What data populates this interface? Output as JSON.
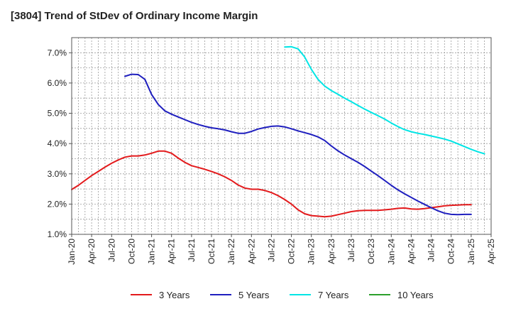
{
  "chart_data": {
    "type": "line",
    "title": "[3804]  Trend of StDev of Ordinary Income Margin",
    "xlabel": "",
    "ylabel": "",
    "ylim": [
      1.0,
      7.5
    ],
    "yticks": [
      "1.0%",
      "2.0%",
      "3.0%",
      "4.0%",
      "5.0%",
      "6.0%",
      "7.0%"
    ],
    "xticks": [
      "Jan-20",
      "Apr-20",
      "Jul-20",
      "Oct-20",
      "Jan-21",
      "Apr-21",
      "Jul-21",
      "Oct-21",
      "Jan-22",
      "Apr-22",
      "Jul-22",
      "Oct-22",
      "Jan-23",
      "Apr-23",
      "Jul-23",
      "Oct-23",
      "Jan-24",
      "Apr-24",
      "Jul-24",
      "Oct-24",
      "Jan-25",
      "Apr-25"
    ],
    "grid": true,
    "legend_position": "bottom",
    "series": [
      {
        "name": "3 Years",
        "color": "#e31a1c",
        "points": [
          [
            "2020-01",
            2.48
          ],
          [
            "2020-02",
            2.62
          ],
          [
            "2020-03",
            2.78
          ],
          [
            "2020-04",
            2.94
          ],
          [
            "2020-05",
            3.08
          ],
          [
            "2020-06",
            3.22
          ],
          [
            "2020-07",
            3.35
          ],
          [
            "2020-08",
            3.46
          ],
          [
            "2020-09",
            3.55
          ],
          [
            "2020-10",
            3.59
          ],
          [
            "2020-11",
            3.59
          ],
          [
            "2020-12",
            3.62
          ],
          [
            "2021-01",
            3.68
          ],
          [
            "2021-02",
            3.75
          ],
          [
            "2021-03",
            3.75
          ],
          [
            "2021-04",
            3.68
          ],
          [
            "2021-05",
            3.52
          ],
          [
            "2021-06",
            3.38
          ],
          [
            "2021-07",
            3.27
          ],
          [
            "2021-08",
            3.21
          ],
          [
            "2021-09",
            3.15
          ],
          [
            "2021-10",
            3.08
          ],
          [
            "2021-11",
            3.0
          ],
          [
            "2021-12",
            2.9
          ],
          [
            "2022-01",
            2.78
          ],
          [
            "2022-02",
            2.63
          ],
          [
            "2022-03",
            2.53
          ],
          [
            "2022-04",
            2.49
          ],
          [
            "2022-05",
            2.49
          ],
          [
            "2022-06",
            2.45
          ],
          [
            "2022-07",
            2.38
          ],
          [
            "2022-08",
            2.28
          ],
          [
            "2022-09",
            2.15
          ],
          [
            "2022-10",
            2.0
          ],
          [
            "2022-11",
            1.81
          ],
          [
            "2022-12",
            1.68
          ],
          [
            "2023-01",
            1.62
          ],
          [
            "2023-02",
            1.6
          ],
          [
            "2023-03",
            1.58
          ],
          [
            "2023-04",
            1.6
          ],
          [
            "2023-05",
            1.65
          ],
          [
            "2023-06",
            1.7
          ],
          [
            "2023-07",
            1.75
          ],
          [
            "2023-08",
            1.78
          ],
          [
            "2023-09",
            1.79
          ],
          [
            "2023-10",
            1.79
          ],
          [
            "2023-11",
            1.79
          ],
          [
            "2023-12",
            1.81
          ],
          [
            "2024-01",
            1.83
          ],
          [
            "2024-02",
            1.86
          ],
          [
            "2024-03",
            1.87
          ],
          [
            "2024-04",
            1.84
          ],
          [
            "2024-05",
            1.83
          ],
          [
            "2024-06",
            1.85
          ],
          [
            "2024-07",
            1.88
          ],
          [
            "2024-08",
            1.91
          ],
          [
            "2024-09",
            1.94
          ],
          [
            "2024-10",
            1.96
          ],
          [
            "2024-11",
            1.97
          ],
          [
            "2024-12",
            1.98
          ],
          [
            "2025-01",
            1.98
          ]
        ]
      },
      {
        "name": "5 Years",
        "color": "#1f1fbf",
        "points": [
          [
            "2020-09",
            6.22
          ],
          [
            "2020-10",
            6.29
          ],
          [
            "2020-11",
            6.28
          ],
          [
            "2020-12",
            6.12
          ],
          [
            "2021-01",
            5.62
          ],
          [
            "2021-02",
            5.29
          ],
          [
            "2021-03",
            5.08
          ],
          [
            "2021-04",
            4.97
          ],
          [
            "2021-05",
            4.88
          ],
          [
            "2021-06",
            4.79
          ],
          [
            "2021-07",
            4.7
          ],
          [
            "2021-08",
            4.63
          ],
          [
            "2021-09",
            4.57
          ],
          [
            "2021-10",
            4.52
          ],
          [
            "2021-11",
            4.49
          ],
          [
            "2021-12",
            4.45
          ],
          [
            "2022-01",
            4.39
          ],
          [
            "2022-02",
            4.34
          ],
          [
            "2022-03",
            4.34
          ],
          [
            "2022-04",
            4.4
          ],
          [
            "2022-05",
            4.48
          ],
          [
            "2022-06",
            4.53
          ],
          [
            "2022-07",
            4.57
          ],
          [
            "2022-08",
            4.58
          ],
          [
            "2022-09",
            4.55
          ],
          [
            "2022-10",
            4.49
          ],
          [
            "2022-11",
            4.42
          ],
          [
            "2022-12",
            4.36
          ],
          [
            "2023-01",
            4.3
          ],
          [
            "2023-02",
            4.22
          ],
          [
            "2023-03",
            4.1
          ],
          [
            "2023-04",
            3.92
          ],
          [
            "2023-05",
            3.76
          ],
          [
            "2023-06",
            3.62
          ],
          [
            "2023-07",
            3.5
          ],
          [
            "2023-08",
            3.38
          ],
          [
            "2023-09",
            3.24
          ],
          [
            "2023-10",
            3.09
          ],
          [
            "2023-11",
            2.94
          ],
          [
            "2023-12",
            2.78
          ],
          [
            "2024-01",
            2.62
          ],
          [
            "2024-02",
            2.47
          ],
          [
            "2024-03",
            2.34
          ],
          [
            "2024-04",
            2.22
          ],
          [
            "2024-05",
            2.1
          ],
          [
            "2024-06",
            1.99
          ],
          [
            "2024-07",
            1.88
          ],
          [
            "2024-08",
            1.78
          ],
          [
            "2024-09",
            1.7
          ],
          [
            "2024-10",
            1.66
          ],
          [
            "2024-11",
            1.65
          ],
          [
            "2024-12",
            1.66
          ],
          [
            "2025-01",
            1.66
          ]
        ]
      },
      {
        "name": "7 Years",
        "color": "#00e5e5",
        "points": [
          [
            "2022-09",
            7.19
          ],
          [
            "2022-10",
            7.2
          ],
          [
            "2022-11",
            7.13
          ],
          [
            "2022-12",
            6.86
          ],
          [
            "2023-01",
            6.45
          ],
          [
            "2023-02",
            6.12
          ],
          [
            "2023-03",
            5.9
          ],
          [
            "2023-04",
            5.75
          ],
          [
            "2023-05",
            5.63
          ],
          [
            "2023-06",
            5.5
          ],
          [
            "2023-07",
            5.38
          ],
          [
            "2023-08",
            5.26
          ],
          [
            "2023-09",
            5.14
          ],
          [
            "2023-10",
            5.03
          ],
          [
            "2023-11",
            4.92
          ],
          [
            "2023-12",
            4.81
          ],
          [
            "2024-01",
            4.68
          ],
          [
            "2024-02",
            4.56
          ],
          [
            "2024-03",
            4.46
          ],
          [
            "2024-04",
            4.39
          ],
          [
            "2024-05",
            4.34
          ],
          [
            "2024-06",
            4.3
          ],
          [
            "2024-07",
            4.25
          ],
          [
            "2024-08",
            4.2
          ],
          [
            "2024-09",
            4.15
          ],
          [
            "2024-10",
            4.08
          ],
          [
            "2024-11",
            3.99
          ],
          [
            "2024-12",
            3.9
          ],
          [
            "2025-01",
            3.81
          ],
          [
            "2025-02",
            3.73
          ],
          [
            "2025-03",
            3.66
          ]
        ]
      },
      {
        "name": "10 Years",
        "color": "#2ca02c",
        "points": []
      }
    ]
  }
}
